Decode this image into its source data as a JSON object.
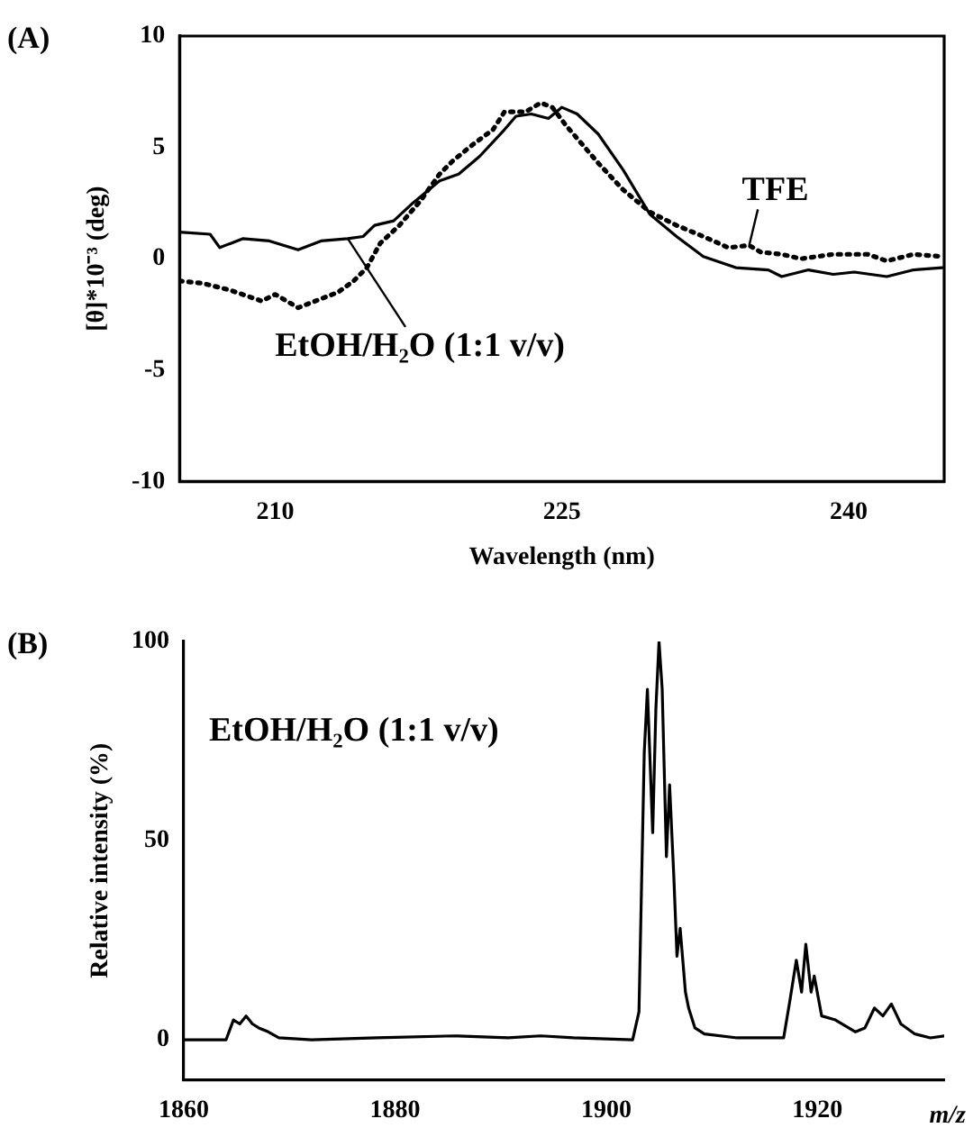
{
  "chart_data": [
    {
      "type": "line",
      "title": "(A)",
      "xlabel": "Wavelength (nm)",
      "ylabel": "[θ]*10⁻³ (deg)",
      "xlim": [
        205,
        245
      ],
      "xticks": [
        210,
        225,
        240
      ],
      "ylim": [
        -10,
        10
      ],
      "yticks": [
        -10,
        -5,
        0,
        5,
        10
      ],
      "grid": false,
      "legend": false,
      "series": [
        {
          "name": "EtOH/H₂O (1:1 v/v)",
          "color": "#000000",
          "line_style": "solid",
          "x": [
            205,
            206.6,
            207.1,
            208.3,
            209.7,
            211.2,
            212.4,
            213.8,
            214.6,
            215.2,
            216.2,
            217.2,
            218.6,
            219.6,
            220.7,
            222,
            222.6,
            223.4,
            224.3,
            225,
            225.8,
            226.9,
            228.2,
            229.6,
            231,
            232.4,
            234.1,
            235.8,
            236.5,
            237.9,
            239.2,
            240.3,
            242,
            243.4,
            244.9
          ],
          "values": [
            1.2,
            1.1,
            0.5,
            0.9,
            0.8,
            0.4,
            0.8,
            0.9,
            1,
            1.5,
            1.7,
            2.5,
            3.5,
            3.8,
            4.6,
            5.8,
            6.4,
            6.5,
            6.3,
            6.8,
            6.5,
            5.6,
            4,
            2,
            1,
            0.1,
            -0.4,
            -0.5,
            -0.8,
            -0.5,
            -0.7,
            -0.6,
            -0.8,
            -0.5,
            -0.4
          ]
        },
        {
          "name": "TFE",
          "color": "#000000",
          "line_style": "dotted",
          "x": [
            205,
            206.2,
            207.6,
            209.3,
            210,
            211.2,
            212.4,
            213.3,
            214.1,
            214.8,
            215.5,
            216.5,
            217.6,
            218.6,
            219.3,
            220.3,
            221.4,
            222,
            223.1,
            223.9,
            224.5,
            225.2,
            225.8,
            226.9,
            228.2,
            229.6,
            231,
            232.4,
            233.7,
            234.8,
            235.4,
            236.5,
            237.5,
            239.2,
            241,
            242,
            243.4,
            244.9
          ],
          "values": [
            -1,
            -1.1,
            -1.4,
            -1.9,
            -1.6,
            -2.2,
            -1.8,
            -1.5,
            -1,
            -0.4,
            0.7,
            1.5,
            2.6,
            3.8,
            4.4,
            5.1,
            5.8,
            6.6,
            6.6,
            7,
            6.8,
            6,
            5.4,
            4.3,
            3.1,
            2.1,
            1.5,
            1,
            0.5,
            0.6,
            0.3,
            0.2,
            0,
            0.2,
            0.2,
            -0.1,
            0.2,
            0.1
          ]
        }
      ]
    },
    {
      "type": "line",
      "title": "(B)",
      "xlabel": "m/z",
      "ylabel": "Relative intensity (%)",
      "annotations": [
        "EtOH/H₂O (1:1 v/v)"
      ],
      "xlim": [
        1860,
        1932
      ],
      "xticks": [
        1860,
        1880,
        1900,
        1920
      ],
      "ylim": [
        -10,
        100
      ],
      "yticks": [
        0,
        50,
        100
      ],
      "grid": false,
      "legend": false,
      "series": [
        {
          "color": "#000000",
          "line_style": "solid",
          "x": [
            1860,
            1864,
            1864.7,
            1865.3,
            1865.9,
            1866.5,
            1867.1,
            1868,
            1869,
            1872.1,
            1878.3,
            1885.7,
            1890.7,
            1893.8,
            1896.9,
            1902.5,
            1903.1,
            1903.6,
            1903.9,
            1904.4,
            1904.7,
            1905,
            1905.3,
            1905.7,
            1906,
            1906.4,
            1906.7,
            1907,
            1907.5,
            1907.8,
            1908.4,
            1909.3,
            1912.4,
            1916.8,
            1917.4,
            1918,
            1918.5,
            1918.9,
            1919.4,
            1919.7,
            1920.4,
            1921.7,
            1923.6,
            1924.5,
            1925.4,
            1926.2,
            1927,
            1927.9,
            1929.2,
            1930.7,
            1932
          ],
          "values": [
            0,
            0,
            5,
            4,
            6,
            4,
            3,
            2,
            0.5,
            0,
            0.5,
            1,
            0.5,
            1,
            0.5,
            0,
            7,
            72,
            88,
            52,
            83,
            100,
            88,
            46,
            64,
            41,
            21,
            28,
            12,
            8,
            3,
            1.5,
            0.5,
            0.5,
            10,
            20,
            12,
            24,
            12,
            16,
            6,
            5,
            2,
            3,
            8,
            6,
            9,
            4,
            1.5,
            0.5,
            1
          ]
        }
      ]
    }
  ]
}
